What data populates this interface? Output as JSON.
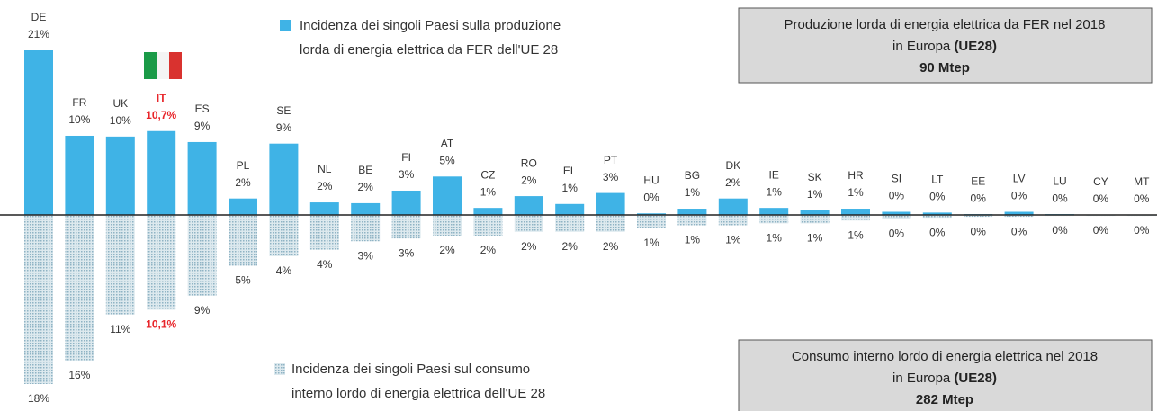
{
  "chart_data": {
    "type": "diverging_bar",
    "categories": [
      "DE",
      "FR",
      "UK",
      "IT",
      "ES",
      "PL",
      "SE",
      "NL",
      "BE",
      "FI",
      "AT",
      "CZ",
      "RO",
      "EL",
      "PT",
      "HU",
      "BG",
      "DK",
      "IE",
      "SK",
      "HR",
      "SI",
      "LT",
      "EE",
      "LV",
      "LU",
      "CY",
      "MT"
    ],
    "series": [
      {
        "name": [
          "Incidenza dei singoli Paesi sulla produzione",
          "lorda di energia elettrica da FER dell'UE 28"
        ],
        "color": "#3fb3e6",
        "values": [
          21,
          10.1,
          10,
          10.7,
          9.3,
          2.1,
          9.1,
          1.6,
          1.5,
          3.1,
          4.9,
          0.9,
          2.4,
          1.4,
          2.8,
          0.2,
          0.8,
          2.1,
          0.9,
          0.6,
          0.8,
          0.4,
          0.3,
          0.1,
          0.4,
          0.1,
          0,
          0
        ],
        "value_labels": [
          "21%",
          "10%",
          "10%",
          "10,7%",
          "9%",
          "2%",
          "9%",
          "2%",
          "2%",
          "3%",
          "5%",
          "1%",
          "2%",
          "1%",
          "3%",
          "0%",
          "1%",
          "2%",
          "1%",
          "1%",
          "1%",
          "0%",
          "0%",
          "0%",
          "0%",
          "0%",
          "0%",
          "0%"
        ]
      },
      {
        "name": [
          "Incidenza dei singoli Paesi sul consumo",
          "interno lordo di energia elettrica dell'UE 28"
        ],
        "color": "#b9d3de",
        "axis": "y2",
        "values": [
          18,
          15.5,
          10.6,
          10.1,
          8.6,
          5.4,
          4.4,
          3.7,
          2.8,
          2.5,
          2.2,
          2.2,
          1.8,
          1.8,
          1.8,
          1.4,
          1.1,
          1.1,
          0.9,
          0.9,
          0.6,
          0.4,
          0.3,
          0.2,
          0.2,
          0.1,
          0.1,
          0.1
        ],
        "value_labels": [
          "18%",
          "16%",
          "11%",
          "10,1%",
          "9%",
          "5%",
          "4%",
          "4%",
          "3%",
          "3%",
          "2%",
          "2%",
          "2%",
          "2%",
          "2%",
          "1%",
          "1%",
          "1%",
          "1%",
          "1%",
          "1%",
          "0%",
          "0%",
          "0%",
          "0%",
          "0%",
          "0%",
          "0%"
        ]
      }
    ],
    "ylim": [
      0,
      21
    ],
    "y2lim": [
      0,
      18
    ],
    "highlight_category": "IT",
    "highlight_color": "#e8262b",
    "boxes": [
      {
        "line1": "Produzione lorda di energia elettrica da FER nel 2018",
        "line2": "in Europa",
        "line2_bold": "(UE28)",
        "line3": "90 Mtep"
      },
      {
        "line1": "Consumo interno lordo di energia elettrica nel 2018",
        "line2": "in Europa",
        "line2_bold": "(UE28)",
        "line3": "282 Mtep"
      }
    ]
  }
}
